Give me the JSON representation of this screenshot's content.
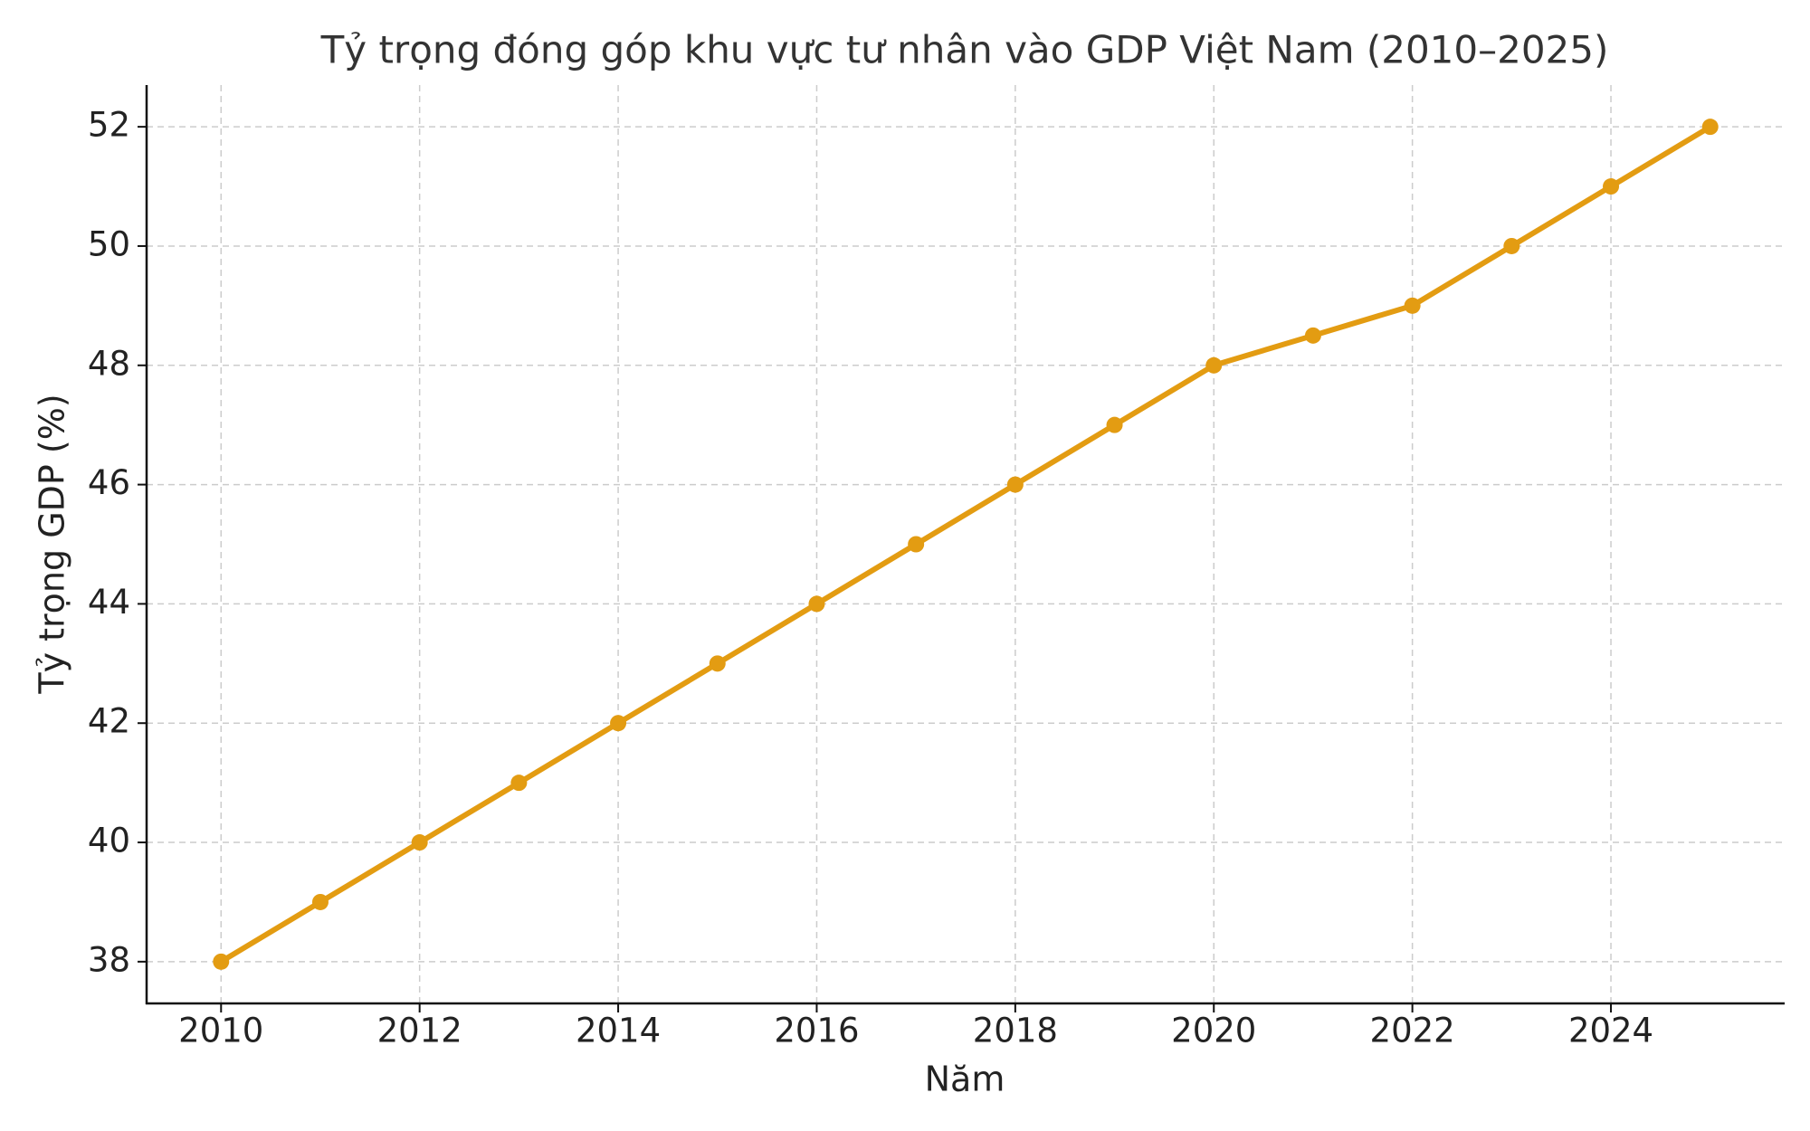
{
  "chart_data": {
    "type": "line",
    "title": "Tỷ trọng đóng góp khu vực tư nhân vào GDP Việt Nam (2010–2025)",
    "x_label": "Năm",
    "y_label": "Tỷ trọng GDP (%)",
    "x": [
      2010,
      2011,
      2012,
      2013,
      2014,
      2015,
      2016,
      2017,
      2018,
      2019,
      2020,
      2021,
      2022,
      2023,
      2024,
      2025
    ],
    "series": [
      {
        "color": "#e39c12",
        "values": [
          38,
          39,
          40,
          41,
          42,
          43,
          44,
          45,
          46,
          47,
          48,
          48.5,
          49,
          50,
          51,
          52
        ]
      }
    ],
    "xlim": [
      2009.25,
      2025.75
    ],
    "ylim": [
      37.3,
      52.7
    ],
    "xticks": [
      2010,
      2012,
      2014,
      2016,
      2018,
      2020,
      2022,
      2024
    ],
    "yticks": [
      38,
      40,
      42,
      44,
      46,
      48,
      50,
      52
    ],
    "grid": true,
    "markers": true
  }
}
